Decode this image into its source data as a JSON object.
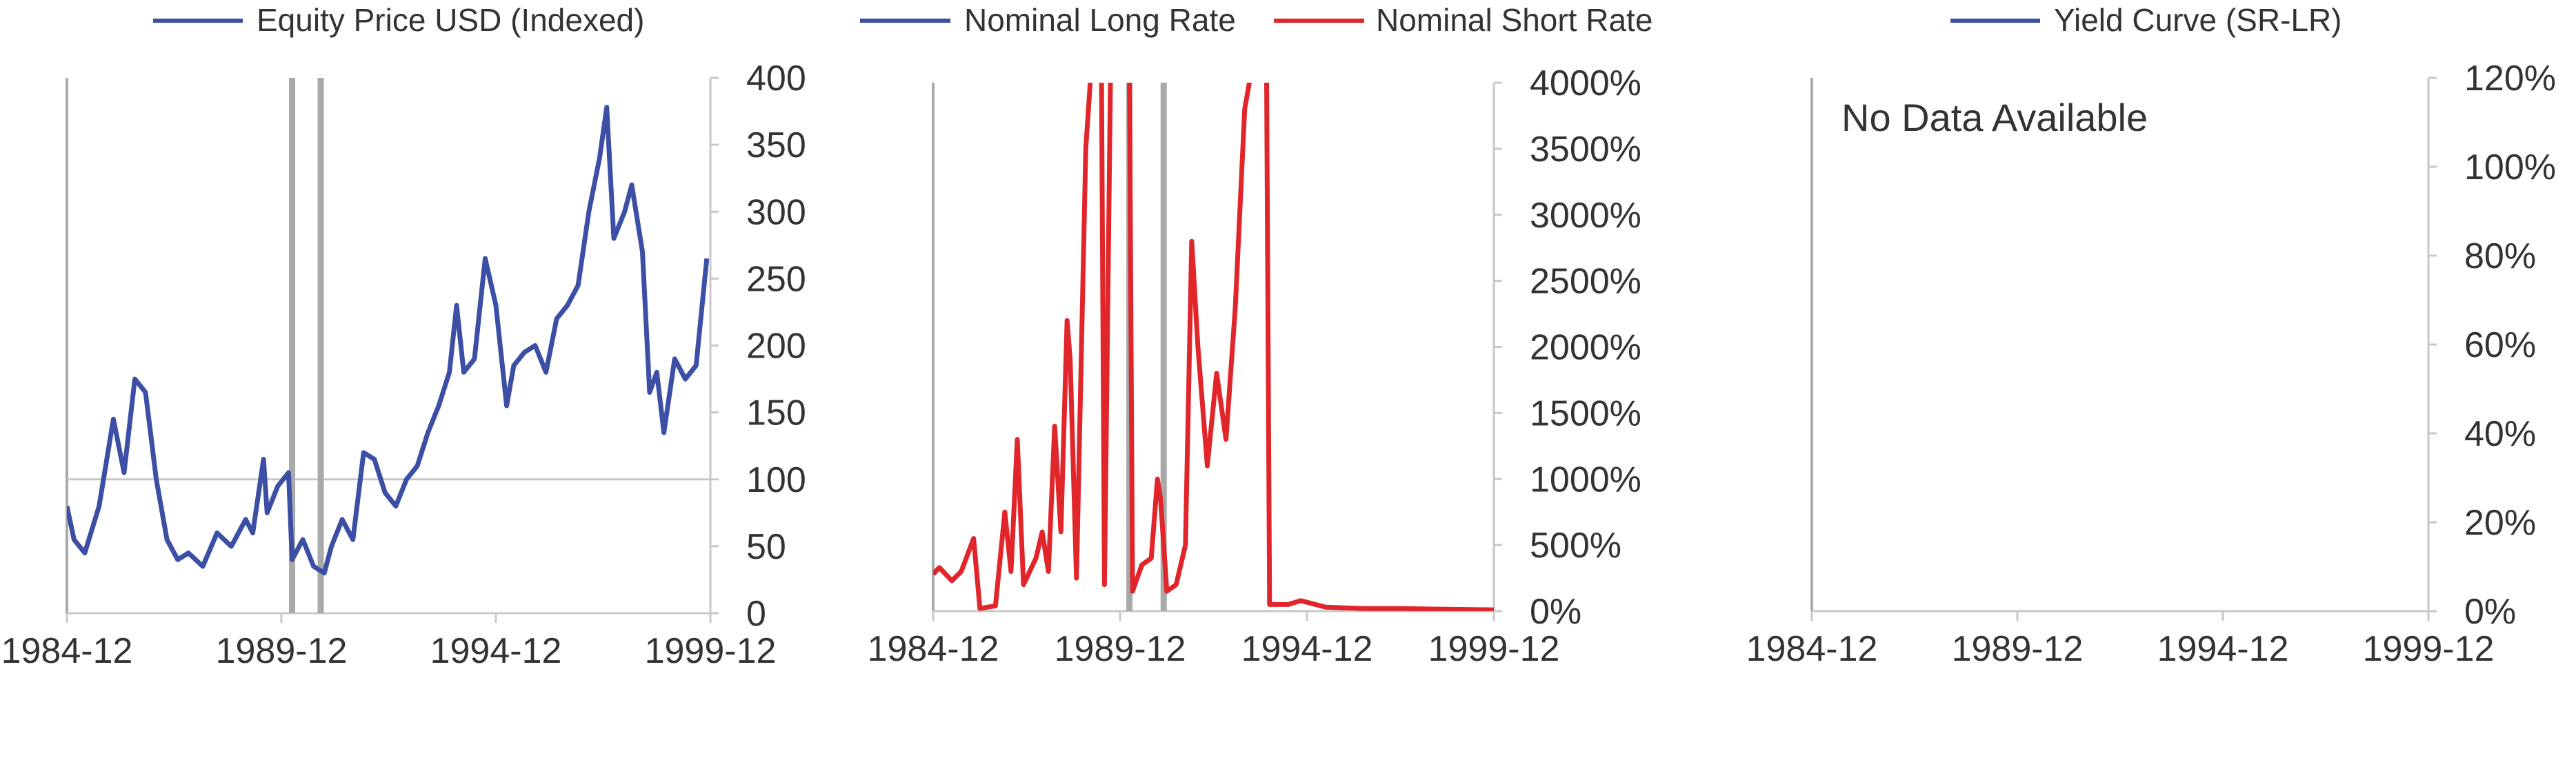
{
  "colors": {
    "blue": "#3c4fa5",
    "red": "#e0262b",
    "axis": "#c8c8c8",
    "recession": "#a9a9a9",
    "text": "#333333"
  },
  "chart_data": [
    {
      "type": "line",
      "legend_position": "top",
      "x_range": [
        "1984-12",
        "1999-12"
      ],
      "x_ticks": [
        "1984-12",
        "1989-12",
        "1994-12",
        "1999-12"
      ],
      "y_axis_side": "right",
      "ylim": [
        0,
        400
      ],
      "y_ticks": [
        0,
        50,
        100,
        150,
        200,
        250,
        300,
        350,
        400
      ],
      "y_tick_labels": [
        "0",
        "50",
        "100",
        "150",
        "200",
        "250",
        "300",
        "350",
        "400"
      ],
      "reference_line": 100,
      "recession_markers": [
        "1990-03",
        "1990-11"
      ],
      "series": [
        {
          "name": "Equity Price USD (Indexed)",
          "color": "#3c4fa5",
          "points": [
            [
              "1984-12",
              80
            ],
            [
              "1985-02",
              55
            ],
            [
              "1985-05",
              45
            ],
            [
              "1985-09",
              80
            ],
            [
              "1986-01",
              145
            ],
            [
              "1986-04",
              105
            ],
            [
              "1986-07",
              175
            ],
            [
              "1986-10",
              165
            ],
            [
              "1987-01",
              100
            ],
            [
              "1987-04",
              55
            ],
            [
              "1987-07",
              40
            ],
            [
              "1987-10",
              45
            ],
            [
              "1988-02",
              35
            ],
            [
              "1988-06",
              60
            ],
            [
              "1988-10",
              50
            ],
            [
              "1989-02",
              70
            ],
            [
              "1989-04",
              60
            ],
            [
              "1989-07",
              115
            ],
            [
              "1989-08",
              75
            ],
            [
              "1989-11",
              95
            ],
            [
              "1990-02",
              105
            ],
            [
              "1990-03",
              40
            ],
            [
              "1990-06",
              55
            ],
            [
              "1990-09",
              35
            ],
            [
              "1990-12",
              30
            ],
            [
              "1991-02",
              50
            ],
            [
              "1991-05",
              70
            ],
            [
              "1991-08",
              55
            ],
            [
              "1991-11",
              120
            ],
            [
              "1992-02",
              115
            ],
            [
              "1992-05",
              90
            ],
            [
              "1992-08",
              80
            ],
            [
              "1992-11",
              100
            ],
            [
              "1993-02",
              110
            ],
            [
              "1993-05",
              135
            ],
            [
              "1993-08",
              155
            ],
            [
              "1993-11",
              180
            ],
            [
              "1994-01",
              230
            ],
            [
              "1994-03",
              180
            ],
            [
              "1994-06",
              190
            ],
            [
              "1994-09",
              265
            ],
            [
              "1994-12",
              230
            ],
            [
              "1995-03",
              155
            ],
            [
              "1995-05",
              185
            ],
            [
              "1995-08",
              195
            ],
            [
              "1995-11",
              200
            ],
            [
              "1996-02",
              180
            ],
            [
              "1996-05",
              220
            ],
            [
              "1996-08",
              230
            ],
            [
              "1996-11",
              245
            ],
            [
              "1997-02",
              300
            ],
            [
              "1997-05",
              340
            ],
            [
              "1997-07",
              378
            ],
            [
              "1997-09",
              280
            ],
            [
              "1997-12",
              300
            ],
            [
              "1998-02",
              320
            ],
            [
              "1998-05",
              270
            ],
            [
              "1998-07",
              165
            ],
            [
              "1998-09",
              180
            ],
            [
              "1998-11",
              135
            ],
            [
              "1999-02",
              190
            ],
            [
              "1999-05",
              175
            ],
            [
              "1999-08",
              185
            ],
            [
              "1999-11",
              265
            ]
          ]
        }
      ]
    },
    {
      "type": "line",
      "legend_position": "top",
      "x_range": [
        "1984-12",
        "1999-12"
      ],
      "x_ticks": [
        "1984-12",
        "1989-12",
        "1994-12",
        "1999-12"
      ],
      "y_axis_side": "right",
      "ylim": [
        0,
        4000
      ],
      "y_ticks": [
        0,
        500,
        1000,
        1500,
        2000,
        2500,
        3000,
        3500,
        4000
      ],
      "y_tick_labels": [
        "0%",
        "500%",
        "1000%",
        "1500%",
        "2000%",
        "2500%",
        "3000%",
        "3500%",
        "4000%"
      ],
      "recession_markers": [
        "1990-03",
        "1991-02"
      ],
      "series": [
        {
          "name": "Nominal Long Rate",
          "color": "#3c4fa5",
          "points": []
        },
        {
          "name": "Nominal Short Rate",
          "color": "#e0262b",
          "points": [
            [
              "1984-12",
              280
            ],
            [
              "1985-02",
              330
            ],
            [
              "1985-06",
              230
            ],
            [
              "1985-09",
              300
            ],
            [
              "1986-01",
              550
            ],
            [
              "1986-03",
              20
            ],
            [
              "1986-08",
              40
            ],
            [
              "1986-11",
              750
            ],
            [
              "1987-01",
              300
            ],
            [
              "1987-03",
              1300
            ],
            [
              "1987-05",
              200
            ],
            [
              "1987-09",
              400
            ],
            [
              "1987-11",
              600
            ],
            [
              "1988-01",
              300
            ],
            [
              "1988-03",
              1400
            ],
            [
              "1988-05",
              600
            ],
            [
              "1988-07",
              2200
            ],
            [
              "1988-08",
              1900
            ],
            [
              "1988-10",
              250
            ],
            [
              "1989-01",
              3500
            ],
            [
              "1989-03",
              4200
            ],
            [
              "1989-06",
              4200
            ],
            [
              "1989-07",
              200
            ],
            [
              "1989-09",
              4200
            ],
            [
              "1990-03",
              4200
            ],
            [
              "1990-04",
              150
            ],
            [
              "1990-07",
              350
            ],
            [
              "1990-10",
              400
            ],
            [
              "1990-12",
              1000
            ],
            [
              "1991-01",
              850
            ],
            [
              "1991-03",
              150
            ],
            [
              "1991-06",
              200
            ],
            [
              "1991-09",
              500
            ],
            [
              "1991-11",
              2800
            ],
            [
              "1992-01",
              2000
            ],
            [
              "1992-04",
              1100
            ],
            [
              "1992-07",
              1800
            ],
            [
              "1992-10",
              1300
            ],
            [
              "1993-01",
              2300
            ],
            [
              "1993-04",
              3800
            ],
            [
              "1993-07",
              4200
            ],
            [
              "1993-11",
              4200
            ],
            [
              "1993-12",
              50
            ],
            [
              "1994-06",
              50
            ],
            [
              "1994-10",
              80
            ],
            [
              "1995-06",
              30
            ],
            [
              "1996-06",
              20
            ],
            [
              "1997-06",
              20
            ],
            [
              "1998-06",
              15
            ],
            [
              "1999-12",
              10
            ]
          ]
        }
      ]
    },
    {
      "type": "line",
      "legend_position": "top",
      "x_range": [
        "1984-12",
        "1999-12"
      ],
      "x_ticks": [
        "1984-12",
        "1989-12",
        "1994-12",
        "1999-12"
      ],
      "y_axis_side": "right",
      "ylim": [
        0,
        120
      ],
      "y_ticks": [
        0,
        20,
        40,
        60,
        80,
        100,
        120
      ],
      "y_tick_labels": [
        "0%",
        "20%",
        "40%",
        "60%",
        "80%",
        "100%",
        "120%"
      ],
      "annotation": "No Data Available",
      "series": [
        {
          "name": "Yield Curve (SR-LR)",
          "color": "#3c4fa5",
          "points": []
        }
      ]
    }
  ]
}
